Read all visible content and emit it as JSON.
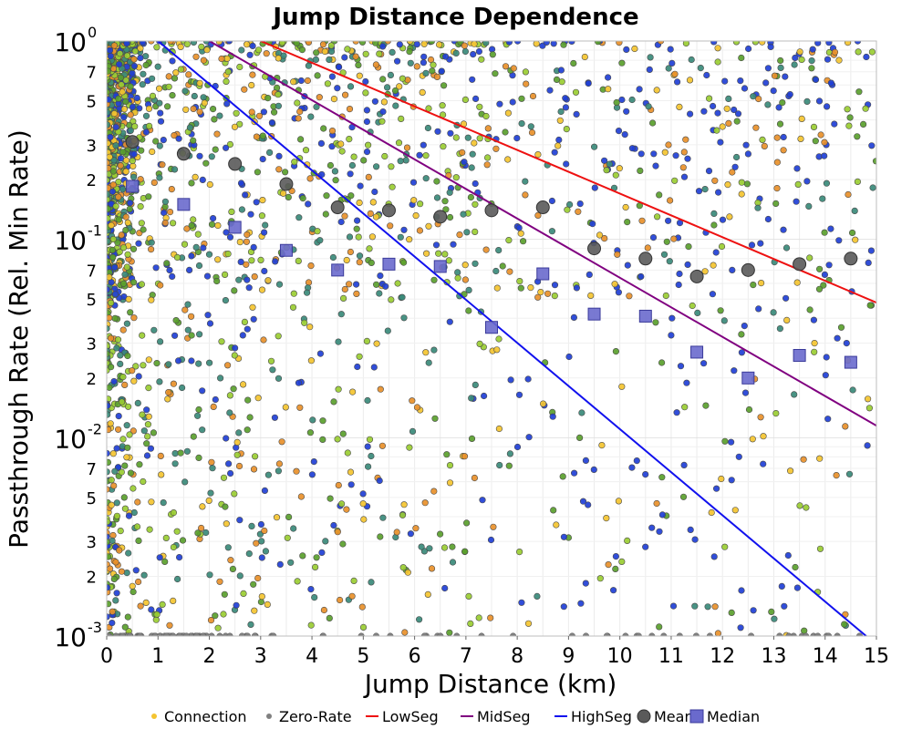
{
  "chart_data": {
    "type": "scatter",
    "title": "Jump Distance Dependence",
    "xlabel": "Jump Distance (km)",
    "ylabel": "Passthrough Rate (Rel. Min Rate)",
    "xlim": [
      0,
      15
    ],
    "ylim": [
      0.001,
      1
    ],
    "yscale": "log",
    "grid": true,
    "legend_position": "bottom",
    "x_ticks": [
      "0",
      "1",
      "2",
      "3",
      "4",
      "5",
      "6",
      "7",
      "8",
      "9",
      "10",
      "11",
      "12",
      "13",
      "14",
      "15"
    ],
    "y_major_ticks": [
      {
        "value": 1,
        "base": "10",
        "exp": "0"
      },
      {
        "value": 0.1,
        "base": "10",
        "exp": "-1"
      },
      {
        "value": 0.01,
        "base": "10",
        "exp": "-2"
      },
      {
        "value": 0.001,
        "base": "10",
        "exp": "-3"
      }
    ],
    "y_minor_tick_labels": [
      "2",
      "3",
      "5",
      "7"
    ],
    "lines": [
      {
        "name": "LowSeg",
        "color": "#ee1111",
        "points": [
          [
            3.0,
            1.0
          ],
          [
            15.0,
            0.048
          ]
        ]
      },
      {
        "name": "MidSeg",
        "color": "#800080",
        "points": [
          [
            2.0,
            1.0
          ],
          [
            15.0,
            0.0115
          ]
        ]
      },
      {
        "name": "HighSeg",
        "color": "#1111ee",
        "points": [
          [
            1.0,
            1.0
          ],
          [
            14.8,
            0.001
          ]
        ]
      }
    ],
    "mean": {
      "name": "Mean",
      "color": "#5a5a5a",
      "x": [
        0.5,
        1.5,
        2.5,
        3.5,
        4.5,
        5.5,
        6.5,
        7.5,
        8.5,
        9.5,
        10.5,
        11.5,
        12.5,
        13.5,
        14.5
      ],
      "y": [
        0.31,
        0.27,
        0.24,
        0.19,
        0.145,
        0.14,
        0.13,
        0.14,
        0.145,
        0.09,
        0.08,
        0.065,
        0.07,
        0.075,
        0.08
      ]
    },
    "median": {
      "name": "Median",
      "color": "#6a6acd",
      "x": [
        0.5,
        1.5,
        2.5,
        3.5,
        4.5,
        5.5,
        6.5,
        7.5,
        8.5,
        9.5,
        10.5,
        11.5,
        12.5,
        13.5,
        14.5
      ],
      "y": [
        0.185,
        0.15,
        0.115,
        0.088,
        0.07,
        0.075,
        0.073,
        0.036,
        0.067,
        0.042,
        0.041,
        0.027,
        0.02,
        0.026,
        0.024
      ]
    },
    "scatter_series": [
      {
        "name": "Connection",
        "color": "#f4c430"
      },
      {
        "name": "Zero-Rate",
        "color": "#808080"
      }
    ],
    "scatter_palette": [
      "#f4c430",
      "#e8902a",
      "#9acd32",
      "#5aa02c",
      "#3a8a7a",
      "#1f3fd6"
    ],
    "scatter_point_count": 2600,
    "scatter_note": "dense cloud of connection points, concentrated near x=0 and high rates, color graded from yellow/orange (low segment count) to green to blue (high segment count); zero-rate points plotted in gray along the bottom axis"
  },
  "legend": [
    {
      "label": "Connection",
      "type": "dot",
      "color": "#f4c430"
    },
    {
      "label": "Zero-Rate",
      "type": "dot",
      "color": "#808080"
    },
    {
      "label": "LowSeg",
      "type": "line",
      "color": "#ee1111"
    },
    {
      "label": "MidSeg",
      "type": "line",
      "color": "#800080"
    },
    {
      "label": "HighSeg",
      "type": "line",
      "color": "#1111ee"
    },
    {
      "label": "Mean",
      "type": "circle",
      "color": "#5a5a5a"
    },
    {
      "label": "Median",
      "type": "square",
      "color": "#6a6acd"
    }
  ]
}
